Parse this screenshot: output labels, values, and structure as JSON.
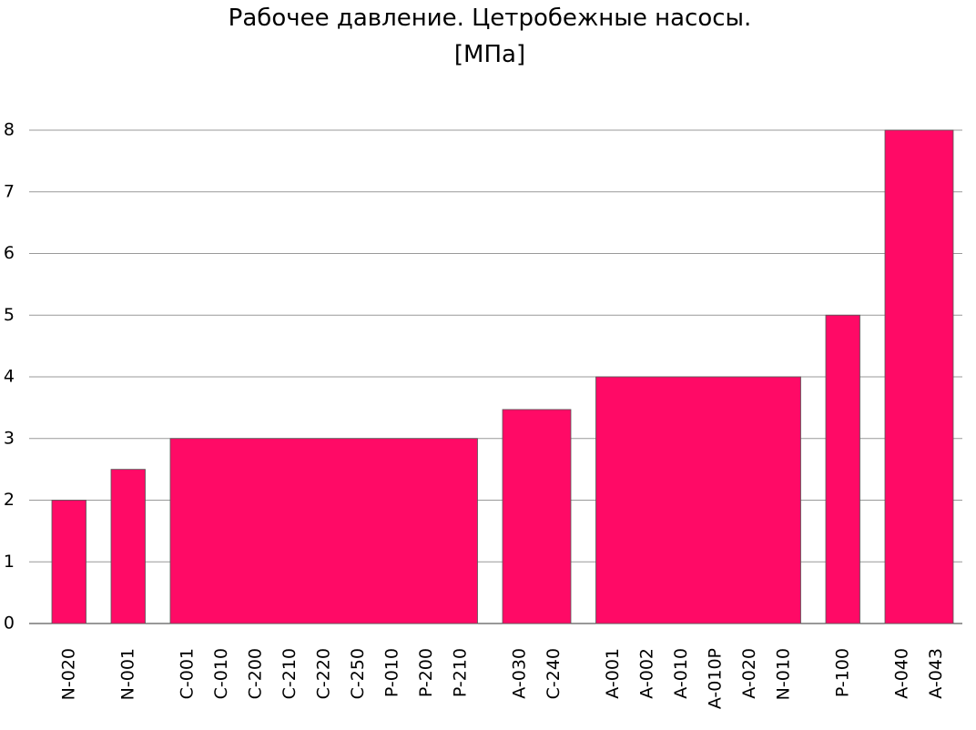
{
  "chart_data": {
    "type": "bar",
    "title": "Рабочее давление. Цетробежные насосы.",
    "subtitle": "[МПа]",
    "categories": [
      [
        "N-020"
      ],
      [
        "N-001"
      ],
      [
        "C-001",
        "C-010",
        "C-200",
        "C-210",
        "C-220",
        "C-250",
        "P-010",
        "P-200",
        "P-210"
      ],
      [
        "A-030",
        "C-240"
      ],
      [
        "A-001",
        "A-002",
        "A-010",
        "A-010P",
        "A-020",
        "N-010"
      ],
      [
        "P-100"
      ],
      [
        "A-040",
        "A-043"
      ]
    ],
    "values": [
      2,
      2.5,
      3,
      3.47,
      4,
      5,
      8
    ],
    "color": "#ff0a66",
    "ylim": [
      0,
      8
    ],
    "yticks": [
      0,
      1,
      2,
      3,
      4,
      5,
      6,
      7,
      8
    ],
    "grid": true
  }
}
